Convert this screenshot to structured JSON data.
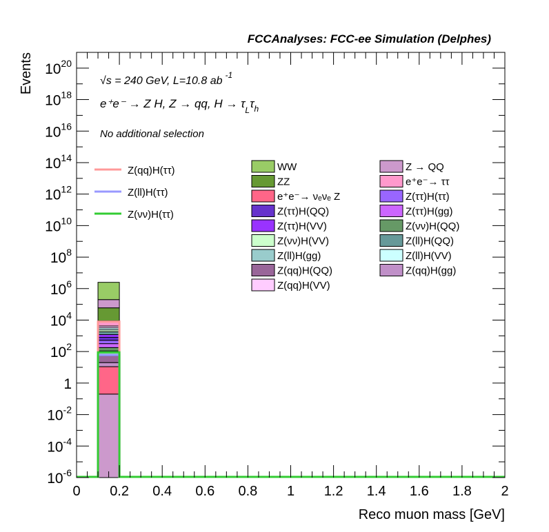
{
  "header": {
    "title": "FCCAnalyses: FCC-ee Simulation (Delphes)",
    "energy_line": "√s = 240 GeV, L=10.8 ab",
    "lumi_exp": "-1",
    "process_line": "e⁺e⁻ → Z H, Z → qq, H → τ",
    "process_sub1": "L",
    "process_tau2": "τ",
    "process_sub2": "h",
    "selection": "No additional selection"
  },
  "chart_data": {
    "type": "bar",
    "xlabel": "Reco muon mass [GeV]",
    "ylabel": "Events",
    "xlim": [
      0,
      2
    ],
    "ylim": [
      1e-06,
      1e+21
    ],
    "log_y": true,
    "x_ticks": [
      "0",
      "0.2",
      "0.4",
      "0.6",
      "0.8",
      "1",
      "1.2",
      "1.4",
      "1.6",
      "1.8",
      "2"
    ],
    "y_ticks": [
      {
        "base": "10",
        "exp": "-6",
        "value": 1e-06
      },
      {
        "base": "10",
        "exp": "-4",
        "value": 0.0001
      },
      {
        "base": "10",
        "exp": "-2",
        "value": 0.01
      },
      {
        "base": "1",
        "exp": "",
        "value": 1
      },
      {
        "base": "10",
        "exp": "2",
        "value": 100.0
      },
      {
        "base": "10",
        "exp": "4",
        "value": 10000.0
      },
      {
        "base": "10",
        "exp": "6",
        "value": 1000000.0
      },
      {
        "base": "10",
        "exp": "8",
        "value": 100000000.0
      },
      {
        "base": "10",
        "exp": "10",
        "value": 10000000000.0
      },
      {
        "base": "10",
        "exp": "12",
        "value": 1000000000000.0
      },
      {
        "base": "10",
        "exp": "14",
        "value": 100000000000000.0
      },
      {
        "base": "10",
        "exp": "16",
        "value": 1e+16
      },
      {
        "base": "10",
        "exp": "18",
        "value": 1e+18
      },
      {
        "base": "10",
        "exp": "20",
        "value": 1e+20
      }
    ],
    "bin": [
      0.1,
      0.2
    ],
    "stack_segments": [
      {
        "name": "Z → QQ",
        "color": "#cc99cc",
        "bottom": 1e-06,
        "top": 0.2
      },
      {
        "name": "e⁺e⁻→ νₑνₑ Z",
        "color": "#ff6688",
        "bottom": 0.2,
        "top": 11
      },
      {
        "name": "Z(qq)H(gg)",
        "color": "#c090c8",
        "bottom": 11,
        "top": 20
      },
      {
        "name": "Z(qq)H(QQ)",
        "color": "#996699",
        "bottom": 20,
        "top": 55
      },
      {
        "name": "Z(ll)H(gg)",
        "color": "#99cccc",
        "bottom": 55,
        "top": 110
      },
      {
        "name": "Z(νν)H(QQ)",
        "color": "#669966",
        "bottom": 110,
        "top": 180
      },
      {
        "name": "Z(ττ)H(gg)",
        "color": "#cc66ff",
        "bottom": 180,
        "top": 320
      },
      {
        "name": "Z(ττ)H(ττ)",
        "color": "#9966ff",
        "bottom": 320,
        "top": 520
      },
      {
        "name": "Z(ττ)H(QQ)",
        "color": "#6633cc",
        "bottom": 520,
        "top": 800
      },
      {
        "name": "Z(ττ)H(VV)",
        "color": "#9933ff",
        "bottom": 800,
        "top": 1200
      },
      {
        "name": "Z(ll)H(QQ)",
        "color": "#669999",
        "bottom": 1200,
        "top": 1800
      },
      {
        "name": "Z(νν)H(VV)",
        "color": "#ccffcc",
        "bottom": 1800,
        "top": 2400
      },
      {
        "name": "Z(ll)H(VV)",
        "color": "#ccffff",
        "bottom": 2400,
        "top": 3200
      },
      {
        "name": "Z(qq)H(VV)",
        "color": "#ffccff",
        "bottom": 3200,
        "top": 4200
      },
      {
        "name": "e⁺e⁻→ ττ",
        "color": "#ff99cc",
        "bottom": 4200,
        "top": 9000
      },
      {
        "name": "ZZ",
        "color": "#669933",
        "bottom": 9000,
        "top": 60000
      },
      {
        "name": "Z → QQ",
        "color": "#cc99cc",
        "bottom": 60000,
        "top": 200000
      },
      {
        "name": "WW",
        "color": "#99cc66",
        "bottom": 200000,
        "top": 2500000
      }
    ],
    "signal_lines": [
      {
        "name": "Z(qq)H(ττ)",
        "color": "#ff9999",
        "value": 8000
      },
      {
        "name": "Z(ll)H(ττ)",
        "color": "#9999ff",
        "value": 60
      },
      {
        "name": "Z(νν)H(ττ)",
        "color": "#33cc33",
        "value": 90
      }
    ],
    "legend_signal": [
      {
        "label": "Z(qq)H(ττ)",
        "color": "#ff9999"
      },
      {
        "label": "Z(ll)H(ττ)",
        "color": "#9999ff"
      },
      {
        "label": "Z(νν)H(ττ)",
        "color": "#33cc33"
      }
    ],
    "legend_bkg_col1": [
      {
        "label": "WW",
        "color": "#99cc66"
      },
      {
        "label": "ZZ",
        "color": "#669933"
      },
      {
        "label": "e⁺e⁻→ νₑνₑ Z",
        "color": "#ff6688"
      },
      {
        "label": "Z(ττ)H(QQ)",
        "color": "#6633cc"
      },
      {
        "label": "Z(ττ)H(VV)",
        "color": "#9933ff"
      },
      {
        "label": "Z(νν)H(VV)",
        "color": "#ccffcc"
      },
      {
        "label": "Z(ll)H(gg)",
        "color": "#99cccc"
      },
      {
        "label": "Z(qq)H(QQ)",
        "color": "#996699"
      },
      {
        "label": "Z(qq)H(VV)",
        "color": "#ffccff"
      }
    ],
    "legend_bkg_col2": [
      {
        "label": "Z → QQ",
        "color": "#cc99cc"
      },
      {
        "label": "e⁺e⁻→ ττ",
        "color": "#ff99cc"
      },
      {
        "label": "Z(ττ)H(ττ)",
        "color": "#9966ff"
      },
      {
        "label": "Z(ττ)H(gg)",
        "color": "#cc66ff"
      },
      {
        "label": "Z(νν)H(QQ)",
        "color": "#669966"
      },
      {
        "label": "Z(ll)H(QQ)",
        "color": "#669999"
      },
      {
        "label": "Z(ll)H(VV)",
        "color": "#ccffff"
      },
      {
        "label": "Z(qq)H(gg)",
        "color": "#c090c8"
      }
    ]
  }
}
